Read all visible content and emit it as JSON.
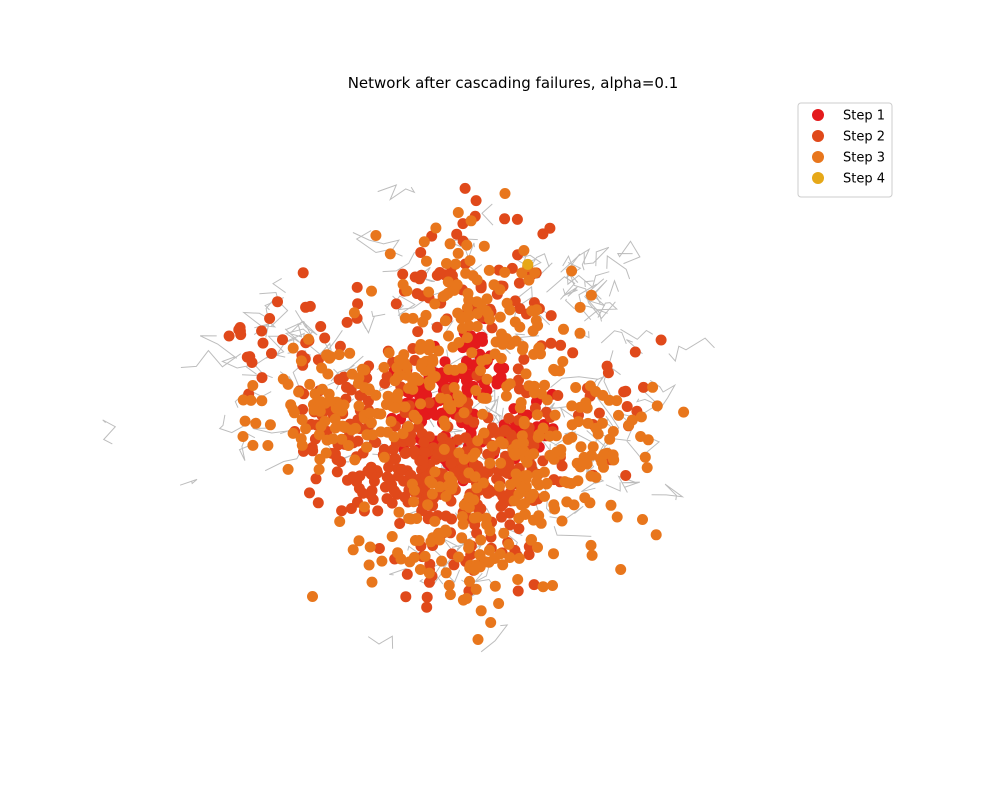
{
  "chart_data": {
    "type": "scatter",
    "title": "Network after cascading failures, alpha=0.1",
    "xlabel": "",
    "ylabel": "",
    "axes_visible": false,
    "grid": false,
    "legend_position": "top-right",
    "background_network": {
      "color": "#bdbdbd",
      "description_visible": false
    },
    "series": [
      {
        "name": "Step 1",
        "color": "#e41a1c",
        "clusters": [
          {
            "cx": 0.45,
            "cy": 0.47,
            "spread": 0.03,
            "count": 60
          },
          {
            "cx": 0.53,
            "cy": 0.44,
            "spread": 0.025,
            "count": 35
          },
          {
            "cx": 0.6,
            "cy": 0.54,
            "spread": 0.03,
            "count": 30
          },
          {
            "cx": 0.47,
            "cy": 0.56,
            "spread": 0.03,
            "count": 35
          },
          {
            "cx": 0.52,
            "cy": 0.38,
            "spread": 0.02,
            "count": 15
          }
        ]
      },
      {
        "name": "Step 2",
        "color": "#e0491a",
        "clusters": [
          {
            "cx": 0.44,
            "cy": 0.6,
            "spread": 0.06,
            "count": 120
          },
          {
            "cx": 0.55,
            "cy": 0.6,
            "spread": 0.06,
            "count": 100
          },
          {
            "cx": 0.52,
            "cy": 0.27,
            "spread": 0.07,
            "count": 60
          },
          {
            "cx": 0.32,
            "cy": 0.48,
            "spread": 0.08,
            "count": 70
          },
          {
            "cx": 0.22,
            "cy": 0.38,
            "spread": 0.05,
            "count": 20
          },
          {
            "cx": 0.5,
            "cy": 0.75,
            "spread": 0.07,
            "count": 50
          },
          {
            "cx": 0.68,
            "cy": 0.5,
            "spread": 0.08,
            "count": 40
          },
          {
            "cx": 0.36,
            "cy": 0.63,
            "spread": 0.04,
            "count": 25
          }
        ]
      },
      {
        "name": "Step 3",
        "color": "#e8761c",
        "clusters": [
          {
            "cx": 0.3,
            "cy": 0.5,
            "spread": 0.06,
            "count": 90
          },
          {
            "cx": 0.6,
            "cy": 0.62,
            "spread": 0.08,
            "count": 110
          },
          {
            "cx": 0.5,
            "cy": 0.73,
            "spread": 0.08,
            "count": 90
          },
          {
            "cx": 0.52,
            "cy": 0.3,
            "spread": 0.07,
            "count": 80
          },
          {
            "cx": 0.7,
            "cy": 0.55,
            "spread": 0.06,
            "count": 50
          },
          {
            "cx": 0.43,
            "cy": 0.45,
            "spread": 0.04,
            "count": 60
          },
          {
            "cx": 0.6,
            "cy": 0.4,
            "spread": 0.05,
            "count": 40
          }
        ]
      },
      {
        "name": "Step 4",
        "color": "#e6a818",
        "points": [
          [
            0.606,
            0.24
          ]
        ]
      }
    ]
  }
}
